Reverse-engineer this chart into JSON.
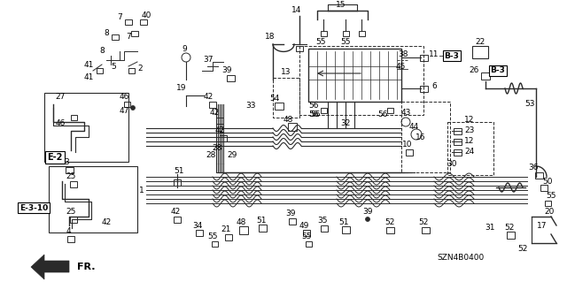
{
  "bg_color": "#ffffff",
  "line_color": "#2a2a2a",
  "part_number": "SZN4B0400",
  "figsize": [
    6.4,
    3.19
  ],
  "dpi": 100
}
